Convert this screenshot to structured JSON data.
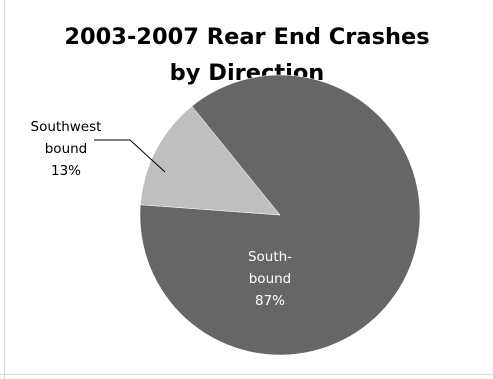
{
  "chart_data": {
    "type": "pie",
    "title_lines": [
      "2003-2007 Rear End Crashes",
      "by Direction"
    ],
    "categories": [
      "South-bound",
      "Southwest bound"
    ],
    "values": [
      87,
      13
    ],
    "unit": "%",
    "data_labels": [
      {
        "lines": [
          "South-",
          "bound",
          "87%"
        ]
      },
      {
        "lines": [
          "Southwest",
          "bound",
          "13%"
        ]
      }
    ],
    "colors": [
      "#666666",
      "#bfbfbf"
    ],
    "label_colors": [
      "#ffffff",
      "#000000"
    ],
    "leader_line_color": "#000000",
    "border_color": "#d9d9d9",
    "legend": "none",
    "gridlines": false
  }
}
